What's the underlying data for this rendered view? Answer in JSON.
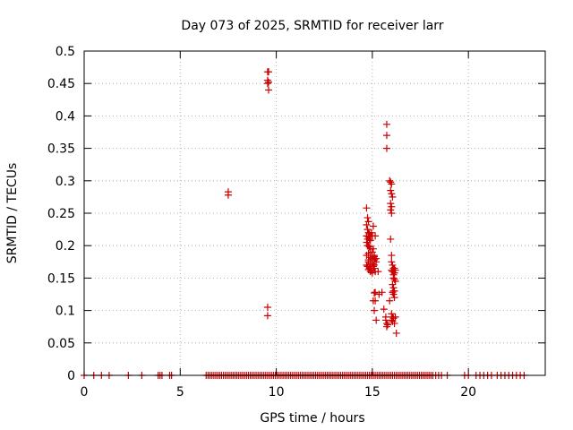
{
  "chart_data": {
    "type": "scatter",
    "title": "Day 073 of 2025, SRMTID for receiver larr",
    "xlabel": "GPS time / hours",
    "ylabel": "SRMTID / TECUs",
    "xlim": [
      0,
      24
    ],
    "ylim": [
      0,
      0.5
    ],
    "x_ticks": [
      0,
      5,
      10,
      15,
      20
    ],
    "y_ticks": [
      0,
      0.05,
      0.1,
      0.15,
      0.2,
      0.25,
      0.3,
      0.35,
      0.4,
      0.45,
      0.5
    ],
    "x_tick_labels": [
      "0",
      "5",
      "10",
      "15",
      "20"
    ],
    "y_tick_labels": [
      "0",
      "0.05",
      "0.1",
      "0.15",
      "0.2",
      "0.25",
      "0.3",
      "0.35",
      "0.4",
      "0.45",
      "0.5"
    ],
    "grid": true,
    "marker": "+",
    "color": "#cc0000",
    "series": [
      {
        "x": [
          9.55,
          9.6,
          9.55,
          9.6,
          9.55,
          9.6,
          7.5,
          7.5,
          9.55,
          9.55,
          14.7,
          14.75,
          14.8,
          14.7,
          14.75,
          14.8,
          14.85,
          14.9,
          14.7,
          14.8,
          14.75,
          14.85,
          14.9,
          14.95,
          15.0,
          15.05,
          14.7,
          14.75,
          14.8,
          14.85,
          14.9,
          15.0,
          15.05,
          15.1,
          15.15,
          14.8,
          14.9,
          15.0,
          15.1,
          15.2,
          14.7,
          14.8,
          14.9,
          15.0,
          15.1,
          15.2,
          14.75,
          14.85,
          14.95,
          15.05,
          15.15,
          14.7,
          14.8,
          14.9,
          15.0,
          15.1,
          14.8,
          14.9,
          15.0,
          15.1,
          15.15,
          15.3,
          15.15,
          15.1,
          15.05,
          15.15,
          15.35,
          15.5,
          15.2,
          15.1,
          15.75,
          15.75,
          15.75,
          15.9,
          15.95,
          16.0,
          15.95,
          16.0,
          16.05,
          15.95,
          16.0,
          15.95,
          16.0,
          15.95,
          16.0,
          16.0,
          16.05,
          16.1,
          16.15,
          16.0,
          16.05,
          16.1,
          16.15,
          16.2,
          16.1,
          16.15,
          16.2,
          16.05,
          16.1,
          16.15,
          16.1,
          16.15,
          16.05,
          16.1,
          16.0,
          16.05,
          16.2,
          16.0,
          16.05,
          16.1,
          16.15,
          16.25,
          15.7,
          15.75,
          15.8,
          15.7,
          15.75,
          15.9,
          15.6
        ],
        "y": [
          0.468,
          0.468,
          0.455,
          0.452,
          0.45,
          0.44,
          0.283,
          0.278,
          0.105,
          0.092,
          0.258,
          0.243,
          0.237,
          0.232,
          0.225,
          0.22,
          0.218,
          0.215,
          0.215,
          0.213,
          0.21,
          0.21,
          0.208,
          0.22,
          0.215,
          0.23,
          0.205,
          0.2,
          0.2,
          0.198,
          0.195,
          0.19,
          0.195,
          0.185,
          0.18,
          0.188,
          0.182,
          0.18,
          0.178,
          0.175,
          0.185,
          0.178,
          0.175,
          0.172,
          0.17,
          0.18,
          0.168,
          0.165,
          0.162,
          0.168,
          0.16,
          0.17,
          0.163,
          0.16,
          0.158,
          0.165,
          0.175,
          0.17,
          0.185,
          0.183,
          0.215,
          0.16,
          0.128,
          0.127,
          0.115,
          0.115,
          0.125,
          0.128,
          0.085,
          0.1,
          0.387,
          0.37,
          0.35,
          0.3,
          0.298,
          0.295,
          0.285,
          0.28,
          0.275,
          0.265,
          0.26,
          0.255,
          0.25,
          0.21,
          0.185,
          0.175,
          0.17,
          0.165,
          0.165,
          0.162,
          0.16,
          0.155,
          0.158,
          0.162,
          0.15,
          0.148,
          0.145,
          0.14,
          0.135,
          0.13,
          0.125,
          0.12,
          0.128,
          0.13,
          0.095,
          0.09,
          0.09,
          0.085,
          0.083,
          0.088,
          0.08,
          0.065,
          0.085,
          0.08,
          0.078,
          0.09,
          0.075,
          0.115,
          0.102
        ]
      },
      {
        "x": [
          0.0,
          0.5,
          0.9,
          1.3,
          2.3,
          3.0,
          3.85,
          3.95,
          4.05,
          4.45,
          4.55,
          6.35,
          6.45,
          6.55,
          6.65,
          6.75,
          6.85,
          6.95,
          7.05,
          7.15,
          7.25,
          7.35,
          7.45,
          7.55,
          7.65,
          7.75,
          7.85,
          7.95,
          8.05,
          8.15,
          8.25,
          8.35,
          8.45,
          8.55,
          8.65,
          8.75,
          8.85,
          8.95,
          9.05,
          9.15,
          9.25,
          9.35,
          9.45,
          9.55,
          9.65,
          9.75,
          9.85,
          9.95,
          10.05,
          10.15,
          10.25,
          10.35,
          10.45,
          10.55,
          10.65,
          10.75,
          10.85,
          10.95,
          11.05,
          11.15,
          11.25,
          11.35,
          11.45,
          11.55,
          11.65,
          11.75,
          11.85,
          11.95,
          12.05,
          12.15,
          12.25,
          12.35,
          12.45,
          12.55,
          12.65,
          12.75,
          12.85,
          12.95,
          13.05,
          13.15,
          13.25,
          13.35,
          13.45,
          13.55,
          13.65,
          13.75,
          13.85,
          13.95,
          14.05,
          14.15,
          14.25,
          14.35,
          14.45,
          14.55,
          14.65,
          14.75,
          14.85,
          14.95,
          15.05,
          15.15,
          15.25,
          15.35,
          15.45,
          15.55,
          15.65,
          15.75,
          15.85,
          15.95,
          16.05,
          16.15,
          16.25,
          16.35,
          16.45,
          16.55,
          16.65,
          16.75,
          16.85,
          16.95,
          17.05,
          17.15,
          17.25,
          17.35,
          17.45,
          17.55,
          17.65,
          17.75,
          17.85,
          17.95,
          18.05,
          18.15,
          18.3,
          18.45,
          18.6,
          18.9,
          19.8,
          20.0,
          20.4,
          20.6,
          20.8,
          21.0,
          21.2,
          21.5,
          21.7,
          21.9,
          22.1,
          22.3,
          22.5,
          22.7,
          22.9
        ],
        "y": [
          0,
          0,
          0,
          0,
          0,
          0,
          0,
          0,
          0,
          0,
          0,
          0,
          0,
          0,
          0,
          0,
          0,
          0,
          0,
          0,
          0,
          0,
          0,
          0,
          0,
          0,
          0,
          0,
          0,
          0,
          0,
          0,
          0,
          0,
          0,
          0,
          0,
          0,
          0,
          0,
          0,
          0,
          0,
          0,
          0,
          0,
          0,
          0,
          0,
          0,
          0,
          0,
          0,
          0,
          0,
          0,
          0,
          0,
          0,
          0,
          0,
          0,
          0,
          0,
          0,
          0,
          0,
          0,
          0,
          0,
          0,
          0,
          0,
          0,
          0,
          0,
          0,
          0,
          0,
          0,
          0,
          0,
          0,
          0,
          0,
          0,
          0,
          0,
          0,
          0,
          0,
          0,
          0,
          0,
          0,
          0,
          0,
          0,
          0,
          0,
          0,
          0,
          0,
          0,
          0,
          0,
          0,
          0,
          0,
          0,
          0,
          0,
          0,
          0,
          0,
          0,
          0,
          0,
          0,
          0,
          0,
          0,
          0,
          0,
          0,
          0,
          0,
          0,
          0,
          0,
          0,
          0,
          0,
          0,
          0,
          0,
          0,
          0,
          0,
          0,
          0,
          0,
          0,
          0,
          0,
          0,
          0,
          0,
          0
        ]
      }
    ]
  }
}
